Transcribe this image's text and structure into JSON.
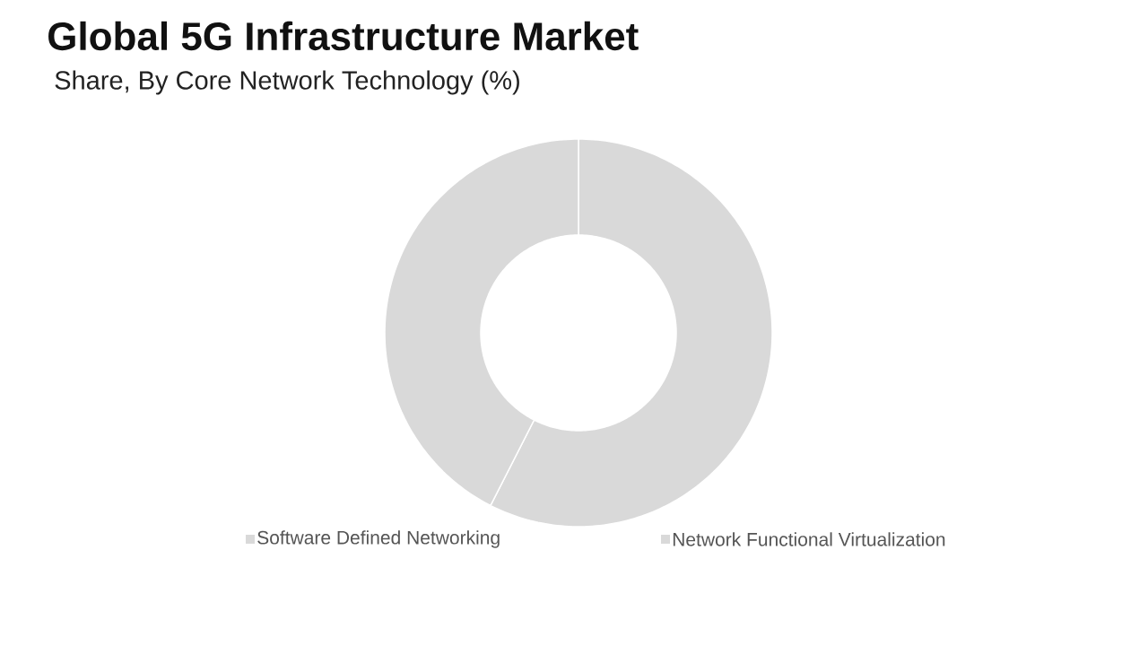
{
  "chart_data": {
    "type": "donut",
    "title": "Global 5G Infrastructure Market",
    "subtitle": "Share, By Core Network Technology (%)",
    "categories": [
      "Software Defined Networking",
      "Network Functional Virtualization"
    ],
    "values": [
      57.5,
      42.5
    ],
    "colors": [
      "#d9d9d9",
      "#d9d9d9"
    ],
    "legend": "bottom"
  }
}
